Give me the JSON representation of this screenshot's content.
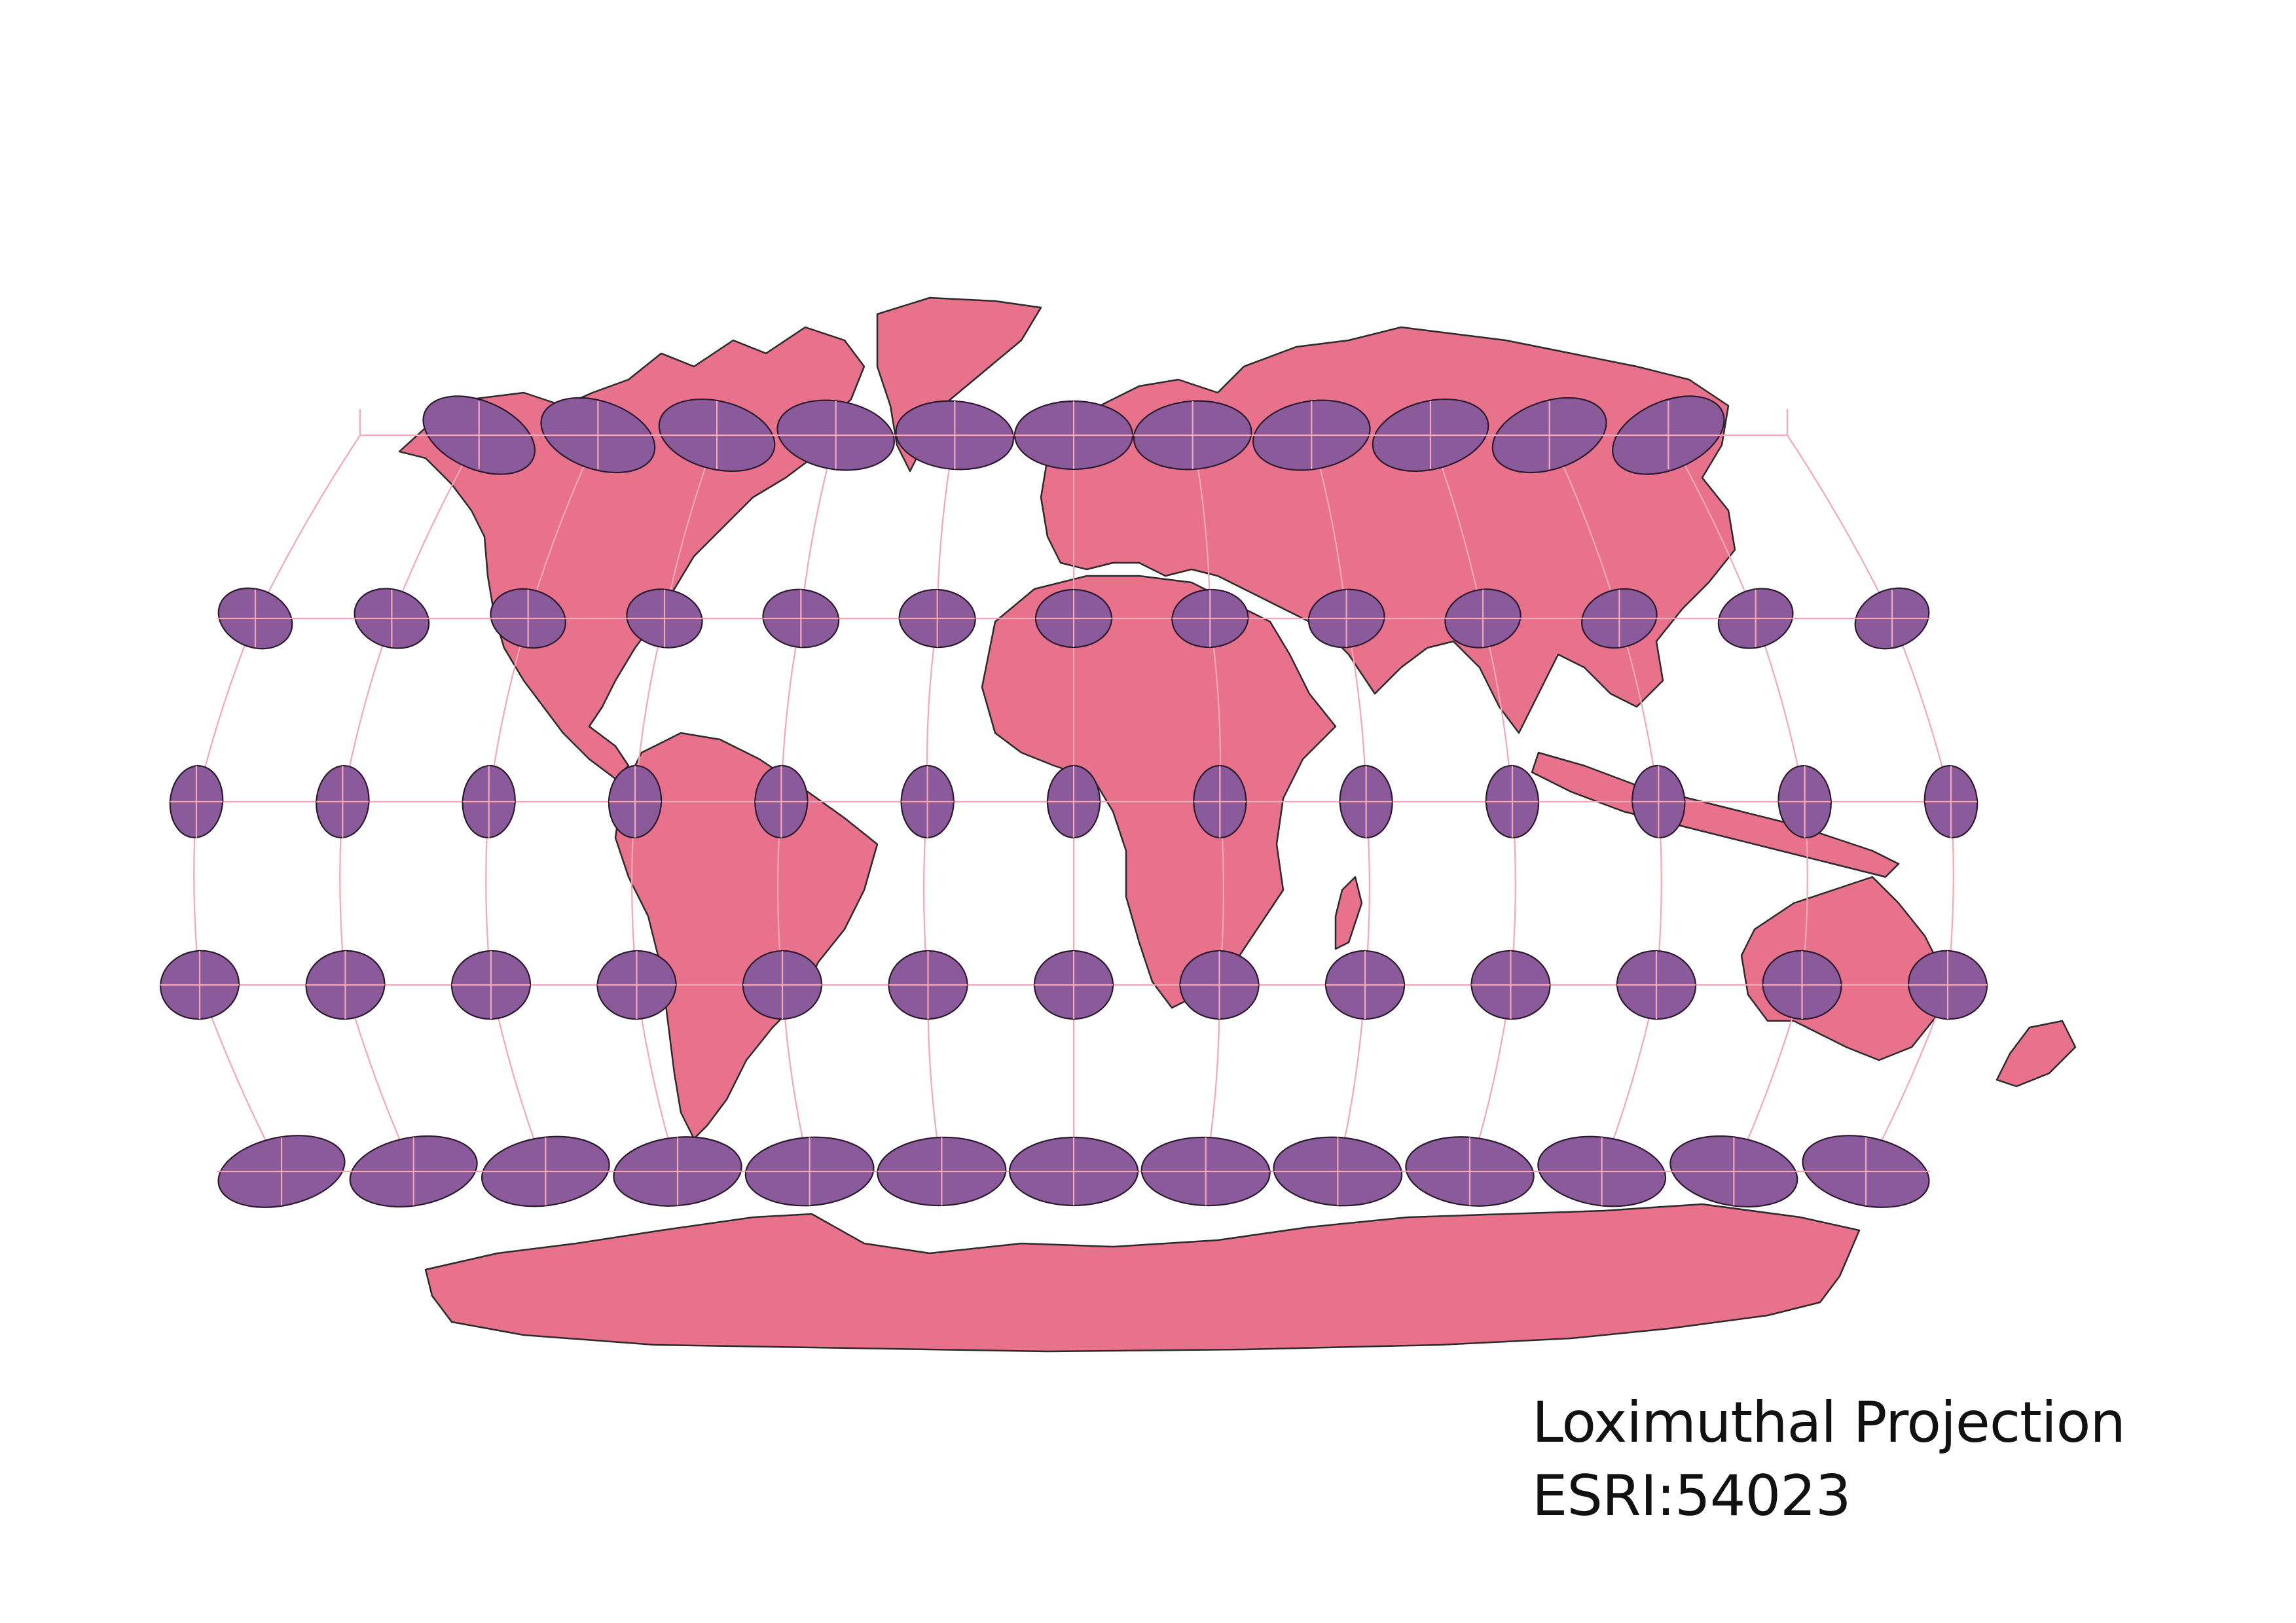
{
  "map": {
    "title": "Loximuthal Projection",
    "crs": "ESRI:54023",
    "projection": "loximuthal",
    "layers": [
      "world-countries",
      "graticule",
      "tissot-indicatrix"
    ],
    "colors": {
      "land": "#e8718c",
      "border": "#2b2b2b",
      "graticule": "#f2a8b8",
      "indicatrix": "#8b5a9b",
      "background": "#ffffff"
    },
    "graticule": {
      "parallels_deg": [
        60,
        30,
        0,
        -30,
        -60
      ],
      "meridians_deg": [
        -150,
        -120,
        -90,
        -60,
        -30,
        0,
        30,
        60,
        90,
        120,
        150
      ]
    },
    "indicatrix_grid": {
      "latitudes_deg": [
        60,
        30,
        0,
        -30,
        -60
      ],
      "longitudes_deg": [
        -180,
        -150,
        -120,
        -90,
        -60,
        -30,
        0,
        30,
        60,
        90,
        120,
        150,
        180
      ]
    }
  }
}
